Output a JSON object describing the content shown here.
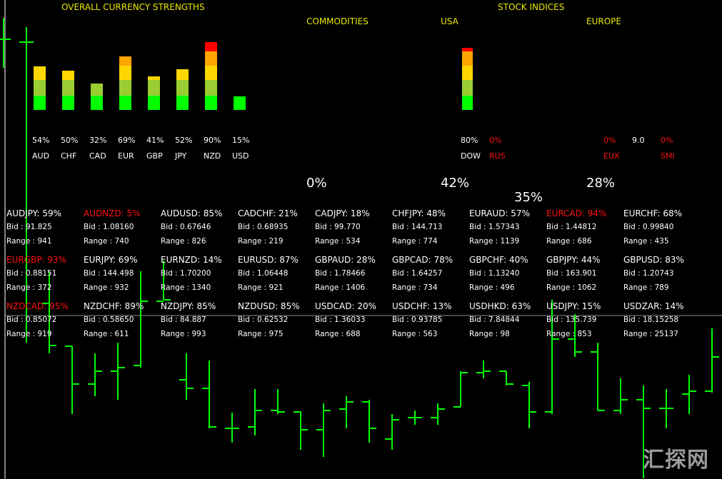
{
  "currency_strengths": {
    "title": "OVERALL CURRENCY STRENGTHS",
    "items": [
      {
        "code": "AUD",
        "pct": "54%",
        "value": 54
      },
      {
        "code": "CHF",
        "pct": "50%",
        "value": 50
      },
      {
        "code": "CAD",
        "pct": "32%",
        "value": 32
      },
      {
        "code": "EUR",
        "pct": "69%",
        "value": 69
      },
      {
        "code": "GBP",
        "pct": "41%",
        "value": 41
      },
      {
        "code": "JPY",
        "pct": "52%",
        "value": 52
      },
      {
        "code": "NZD",
        "pct": "90%",
        "value": 90
      },
      {
        "code": "USD",
        "pct": "15%",
        "value": 15
      }
    ]
  },
  "commodities": {
    "title": "COMMODITIES",
    "total": "0%"
  },
  "stock_indices": {
    "title": "STOCK INDICES",
    "total": "35%",
    "usa": {
      "title": "USA",
      "total": "42%",
      "items": [
        {
          "code": "DOW",
          "pct": "80%",
          "value": 80
        },
        {
          "code": "RUS",
          "pct": "0%",
          "value": 0
        }
      ]
    },
    "europe": {
      "title": "EUROPE",
      "total": "28%",
      "items": [
        {
          "code": "EUX",
          "pct": "0%"
        },
        {
          "code": "",
          "pct": "9.0"
        },
        {
          "code": "SMI",
          "pct": "0%"
        }
      ]
    }
  },
  "pairs": [
    {
      "name": "AUDJPY: 59%",
      "bid": "Bid : 91.825",
      "range": "Range : 941",
      "alert": false
    },
    {
      "name": "AUDNZD: 5%",
      "bid": "Bid : 1.08160",
      "range": "Range : 740",
      "alert": true
    },
    {
      "name": "AUDUSD: 85%",
      "bid": "Bid : 0.67646",
      "range": "Range : 826",
      "alert": false
    },
    {
      "name": "CADCHF: 21%",
      "bid": "Bid : 0.68935",
      "range": "Range : 219",
      "alert": false
    },
    {
      "name": "CADJPY: 18%",
      "bid": "Bid : 99.770",
      "range": "Range : 534",
      "alert": false
    },
    {
      "name": "CHFJPY: 48%",
      "bid": "Bid : 144.713",
      "range": "Range : 774",
      "alert": false
    },
    {
      "name": "EURAUD: 57%",
      "bid": "Bid : 1.57343",
      "range": "Range : 1139",
      "alert": false
    },
    {
      "name": "EURCAD: 94%",
      "bid": "Bid : 1.44812",
      "range": "Range : 686",
      "alert": true
    },
    {
      "name": "EURCHF: 68%",
      "bid": "Bid : 0.99840",
      "range": "Range : 435",
      "alert": false
    },
    {
      "name": "EURGBP: 93%",
      "bid": "Bid : 0.88151",
      "range": "Range : 372",
      "alert": true
    },
    {
      "name": "EURJPY: 69%",
      "bid": "Bid : 144.498",
      "range": "Range : 932",
      "alert": false
    },
    {
      "name": "EURNZD: 14%",
      "bid": "Bid : 1.70200",
      "range": "Range : 1340",
      "alert": false
    },
    {
      "name": "EURUSD: 87%",
      "bid": "Bid : 1.06448",
      "range": "Range : 921",
      "alert": false
    },
    {
      "name": "GBPAUD: 28%",
      "bid": "Bid : 1.78466",
      "range": "Range : 1406",
      "alert": false
    },
    {
      "name": "GBPCAD: 78%",
      "bid": "Bid : 1.64257",
      "range": "Range : 734",
      "alert": false
    },
    {
      "name": "GBPCHF: 40%",
      "bid": "Bid : 1.13240",
      "range": "Range : 496",
      "alert": false
    },
    {
      "name": "GBPJPY: 44%",
      "bid": "Bid : 163.901",
      "range": "Range : 1062",
      "alert": false
    },
    {
      "name": "GBPUSD: 83%",
      "bid": "Bid : 1.20743",
      "range": "Range : 789",
      "alert": false
    },
    {
      "name": "NZDCAD: 95%",
      "bid": "Bid : 0.85072",
      "range": "Range : 919",
      "alert": true
    },
    {
      "name": "NZDCHF: 89%",
      "bid": "Bid : 0.58650",
      "range": "Range : 611",
      "alert": false
    },
    {
      "name": "NZDJPY: 85%",
      "bid": "Bid : 84.887",
      "range": "Range : 993",
      "alert": false
    },
    {
      "name": "NZDUSD: 85%",
      "bid": "Bid : 0.62532",
      "range": "Range : 975",
      "alert": false
    },
    {
      "name": "USDCAD: 20%",
      "bid": "Bid : 1.36033",
      "range": "Range : 688",
      "alert": false
    },
    {
      "name": "USDCHF: 13%",
      "bid": "Bid : 0.93785",
      "range": "Range : 563",
      "alert": false
    },
    {
      "name": "USDHKD: 63%",
      "bid": "Bid : 7.84844",
      "range": "Range : 98",
      "alert": false
    },
    {
      "name": "USDJPY: 15%",
      "bid": "Bid : 135.739",
      "range": "Range : 853",
      "alert": false
    },
    {
      "name": "USDZAR: 14%",
      "bid": "Bid : 18.15258",
      "range": "Range : 25137",
      "alert": false
    }
  ],
  "watermark": "汇探网",
  "colors": {
    "bars": "#00ff00",
    "seg1": "#00ff00",
    "seg2": "#9acd32",
    "seg3": "#ffd700",
    "seg4": "#ffa500",
    "seg5": "#ff0000",
    "title": "#e8e800",
    "alert": "#ff1010"
  }
}
